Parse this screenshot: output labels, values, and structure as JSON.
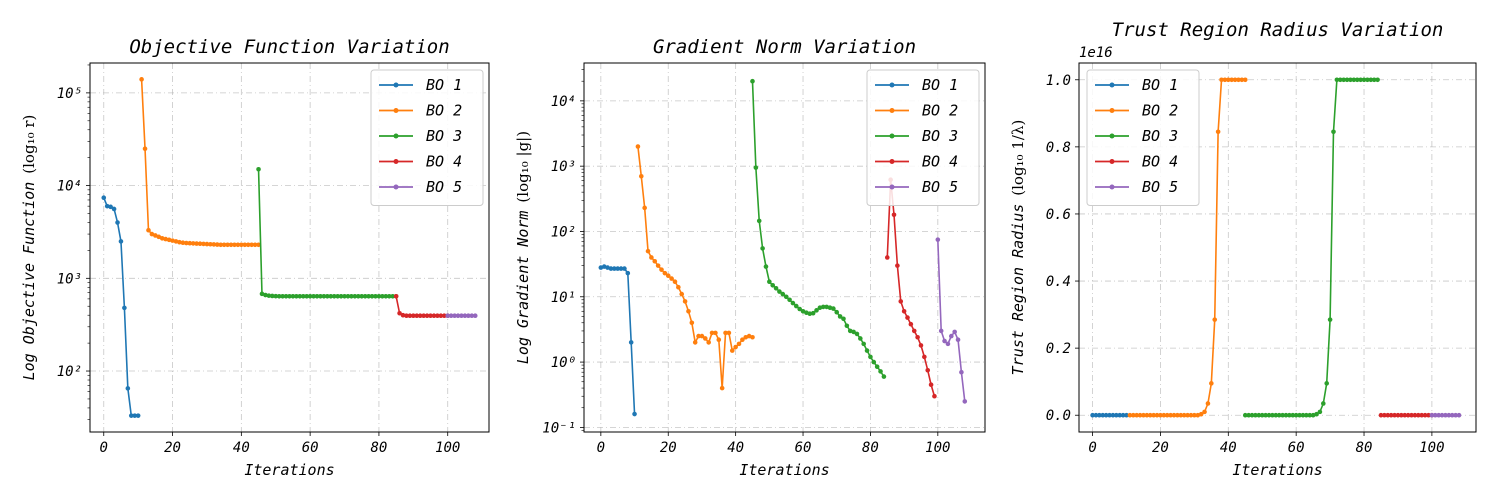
{
  "colors": {
    "BO 1": "#1f77b4",
    "BO 2": "#ff7f0e",
    "BO 3": "#2ca02c",
    "BO 4": "#d62728",
    "BO 5": "#9467bd"
  },
  "chart_data": [
    {
      "type": "line",
      "title": "Objective Function Variation",
      "xlabel": "Iterations",
      "ylabel": "Log Objective Function",
      "ylabel_math": "(log₁₀ r)",
      "yscale": "log",
      "xlim": [
        -4,
        112
      ],
      "ylim": [
        22,
        210000
      ],
      "xticks": [
        0,
        20,
        40,
        60,
        80,
        100
      ],
      "xtick_labels": [
        "0",
        "20",
        "40",
        "60",
        "80",
        "100"
      ],
      "yticks": [
        100,
        1000,
        10000,
        100000
      ],
      "ytick_labels": [
        "10²",
        "10³",
        "10⁴",
        "10⁵"
      ],
      "grid": true,
      "legend": "top-right",
      "series": [
        {
          "name": "BO 1",
          "x": [
            0,
            1,
            2,
            3,
            4,
            5,
            6,
            7,
            8,
            9,
            10
          ],
          "y": [
            7400,
            6000,
            5900,
            5600,
            4000,
            2500,
            480,
            65,
            33,
            33,
            33
          ]
        },
        {
          "name": "BO 2",
          "x": [
            11,
            12,
            13,
            14,
            15,
            16,
            17,
            18,
            19,
            20,
            21,
            22,
            23,
            24,
            25,
            26,
            27,
            28,
            29,
            30,
            31,
            32,
            33,
            34,
            35,
            36,
            37,
            38,
            39,
            40,
            41,
            42,
            43,
            44,
            45
          ],
          "y": [
            140000,
            25000,
            3300,
            3000,
            2900,
            2800,
            2700,
            2650,
            2600,
            2550,
            2500,
            2450,
            2420,
            2400,
            2390,
            2380,
            2370,
            2360,
            2350,
            2340,
            2330,
            2320,
            2310,
            2300,
            2300,
            2300,
            2300,
            2300,
            2300,
            2300,
            2300,
            2300,
            2300,
            2300,
            2300
          ]
        },
        {
          "name": "BO 3",
          "x": [
            45,
            46,
            47,
            48,
            49,
            50,
            51,
            52,
            53,
            54,
            55,
            56,
            57,
            58,
            59,
            60,
            61,
            62,
            63,
            64,
            65,
            66,
            67,
            68,
            69,
            70,
            71,
            72,
            73,
            74,
            75,
            76,
            77,
            78,
            79,
            80,
            81,
            82,
            83,
            84,
            85
          ],
          "y": [
            15000,
            680,
            660,
            650,
            645,
            642,
            640,
            640,
            640,
            640,
            640,
            640,
            640,
            640,
            640,
            640,
            640,
            640,
            640,
            640,
            640,
            640,
            640,
            640,
            640,
            640,
            640,
            640,
            640,
            640,
            640,
            640,
            640,
            640,
            640,
            640,
            640,
            640,
            640,
            640,
            640
          ]
        },
        {
          "name": "BO 4",
          "x": [
            85,
            86,
            87,
            88,
            89,
            90,
            91,
            92,
            93,
            94,
            95,
            96,
            97,
            98,
            99,
            100
          ],
          "y": [
            640,
            420,
            400,
            395,
            395,
            395,
            395,
            395,
            395,
            395,
            395,
            395,
            395,
            395,
            395,
            395
          ]
        },
        {
          "name": "BO 5",
          "x": [
            100,
            101,
            102,
            103,
            104,
            105,
            106,
            107,
            108
          ],
          "y": [
            395,
            395,
            395,
            395,
            395,
            395,
            395,
            395,
            395
          ]
        }
      ]
    },
    {
      "type": "line",
      "title": "Gradient Norm Variation",
      "xlabel": "Iterations",
      "ylabel": "Log Gradient Norm",
      "ylabel_math": "(log₁₀ |g|)",
      "yscale": "log",
      "xlim": [
        -5,
        114
      ],
      "ylim": [
        0.085,
        38000
      ],
      "xticks": [
        0,
        20,
        40,
        60,
        80,
        100
      ],
      "xtick_labels": [
        "0",
        "20",
        "40",
        "60",
        "80",
        "100"
      ],
      "yticks": [
        0.1,
        1,
        10,
        100,
        1000,
        10000
      ],
      "ytick_labels": [
        "10⁻¹",
        "10⁰",
        "10¹",
        "10²",
        "10³",
        "10⁴"
      ],
      "grid": true,
      "legend": "top-right",
      "series": [
        {
          "name": "BO 1",
          "x": [
            0,
            1,
            2,
            3,
            4,
            5,
            6,
            7,
            8,
            9,
            10
          ],
          "y": [
            28,
            29,
            28,
            27,
            27,
            27,
            27,
            27,
            23,
            2,
            0.16
          ]
        },
        {
          "name": "BO 2",
          "x": [
            11,
            12,
            13,
            14,
            15,
            16,
            17,
            18,
            19,
            20,
            21,
            22,
            23,
            24,
            25,
            26,
            27,
            28,
            29,
            30,
            31,
            32,
            33,
            34,
            35,
            36,
            37,
            38,
            39,
            40,
            41,
            42,
            43,
            44,
            45
          ],
          "y": [
            2000,
            700,
            230,
            50,
            40,
            35,
            30,
            26,
            23,
            21,
            19,
            17,
            14,
            11,
            8.5,
            6,
            4,
            2,
            2.5,
            2.5,
            2.3,
            2,
            2.8,
            2.8,
            2.2,
            0.4,
            2.8,
            2.8,
            1.5,
            1.7,
            1.9,
            2.2,
            2.4,
            2.5,
            2.4
          ]
        },
        {
          "name": "BO 3",
          "x": [
            45,
            46,
            47,
            48,
            49,
            50,
            51,
            52,
            53,
            54,
            55,
            56,
            57,
            58,
            59,
            60,
            61,
            62,
            63,
            64,
            65,
            66,
            67,
            68,
            69,
            70,
            71,
            72,
            73,
            74,
            75,
            76,
            77,
            78,
            79,
            80,
            81,
            82,
            83,
            84
          ],
          "y": [
            20000,
            950,
            145,
            55,
            29,
            17,
            15,
            13.5,
            12,
            11,
            10,
            9,
            8,
            7.2,
            6.5,
            6,
            5.7,
            5.5,
            5.6,
            6.2,
            6.8,
            7,
            7,
            6.8,
            6.6,
            5.8,
            5,
            4.6,
            3.6,
            3,
            2.9,
            2.7,
            2.3,
            1.9,
            1.5,
            1.2,
            1,
            0.85,
            0.72,
            0.6
          ]
        },
        {
          "name": "BO 4",
          "x": [
            85,
            86,
            87,
            88,
            89,
            90,
            91,
            92,
            93,
            94,
            95,
            96,
            97,
            98,
            99
          ],
          "y": [
            40,
            620,
            180,
            30,
            8.5,
            6,
            4.8,
            3.8,
            3,
            2.4,
            1.8,
            1.2,
            0.75,
            0.45,
            0.3
          ]
        },
        {
          "name": "BO 5",
          "x": [
            100,
            101,
            102,
            103,
            104,
            105,
            106,
            107,
            108
          ],
          "y": [
            75,
            3,
            2.1,
            1.9,
            2.5,
            2.9,
            2.2,
            0.7,
            0.25
          ]
        }
      ]
    },
    {
      "type": "line",
      "title": "Trust Region Radius Variation",
      "xlabel": "Iterations",
      "ylabel": "Trust Region Radius",
      "ylabel_math": "(log₁₀ 1/λ)",
      "yscale": "linear",
      "offset_text": "1e16",
      "xlim": [
        -4,
        113
      ],
      "ylim": [
        -0.05,
        1.05
      ],
      "xticks": [
        0,
        20,
        40,
        60,
        80,
        100
      ],
      "xtick_labels": [
        "0",
        "20",
        "40",
        "60",
        "80",
        "100"
      ],
      "yticks": [
        0.0,
        0.2,
        0.4,
        0.6,
        0.8,
        1.0
      ],
      "ytick_labels": [
        "0.0",
        "0.2",
        "0.4",
        "0.6",
        "0.8",
        "1.0"
      ],
      "grid": true,
      "legend": "top-left",
      "series": [
        {
          "name": "BO 1",
          "x": [
            0,
            1,
            2,
            3,
            4,
            5,
            6,
            7,
            8,
            9,
            10
          ],
          "y": [
            0,
            0,
            0,
            0,
            0,
            0,
            0,
            0,
            0,
            0,
            0
          ]
        },
        {
          "name": "BO 2",
          "x": [
            11,
            12,
            13,
            14,
            15,
            16,
            17,
            18,
            19,
            20,
            21,
            22,
            23,
            24,
            25,
            26,
            27,
            28,
            29,
            30,
            31,
            32,
            33,
            34,
            35,
            36,
            37,
            38,
            39,
            40,
            41,
            42,
            43,
            44,
            45
          ],
          "y": [
            0,
            0,
            0,
            0,
            0,
            0,
            0,
            0,
            0,
            0,
            0,
            0,
            0,
            0,
            0,
            0,
            0,
            0,
            0,
            0,
            0,
            0.003,
            0.01,
            0.035,
            0.095,
            0.285,
            0.845,
            1,
            1,
            1,
            1,
            1,
            1,
            1,
            1
          ]
        },
        {
          "name": "BO 3",
          "x": [
            45,
            46,
            47,
            48,
            49,
            50,
            51,
            52,
            53,
            54,
            55,
            56,
            57,
            58,
            59,
            60,
            61,
            62,
            63,
            64,
            65,
            66,
            67,
            68,
            69,
            70,
            71,
            72,
            73,
            74,
            75,
            76,
            77,
            78,
            79,
            80,
            81,
            82,
            83,
            84
          ],
          "y": [
            0,
            0,
            0,
            0,
            0,
            0,
            0,
            0,
            0,
            0,
            0,
            0,
            0,
            0,
            0,
            0,
            0,
            0,
            0,
            0,
            0,
            0.003,
            0.01,
            0.035,
            0.095,
            0.285,
            0.845,
            1,
            1,
            1,
            1,
            1,
            1,
            1,
            1,
            1,
            1,
            1,
            1,
            1
          ]
        },
        {
          "name": "BO 4",
          "x": [
            85,
            86,
            87,
            88,
            89,
            90,
            91,
            92,
            93,
            94,
            95,
            96,
            97,
            98,
            99,
            100
          ],
          "y": [
            0,
            0,
            0,
            0,
            0,
            0,
            0,
            0,
            0,
            0,
            0,
            0,
            0,
            0,
            0,
            0
          ]
        },
        {
          "name": "BO 5",
          "x": [
            100,
            101,
            102,
            103,
            104,
            105,
            106,
            107,
            108
          ],
          "y": [
            0,
            0,
            0,
            0,
            0,
            0,
            0,
            0,
            0
          ]
        }
      ]
    }
  ]
}
